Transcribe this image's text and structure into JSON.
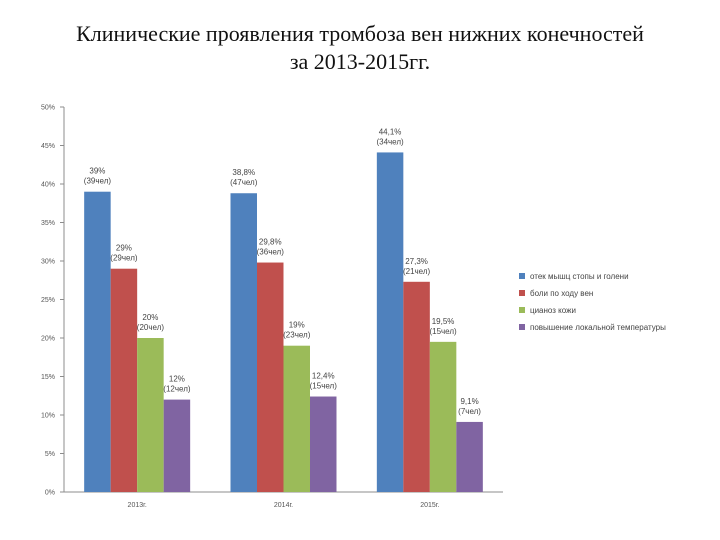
{
  "title": {
    "line1": "Клинические проявления тромбоза вен нижних конечностей",
    "line2": "за 2013-2015гг."
  },
  "chart_data": {
    "type": "bar",
    "categories": [
      "2013г.",
      "2014г.",
      "2015г."
    ],
    "ylim": [
      0,
      50
    ],
    "yticks": [
      "0%",
      "5%",
      "10%",
      "15%",
      "20%",
      "25%",
      "30%",
      "35%",
      "40%",
      "45%",
      "50%"
    ],
    "grid": false,
    "legend_position": "right",
    "series": [
      {
        "name": "отек мышц стопы и голени",
        "color": "#4f81bd",
        "values": [
          39,
          38.8,
          44.1
        ],
        "labels": [
          [
            "39%",
            "(39чел)"
          ],
          [
            "38,8%",
            "(47чел)"
          ],
          [
            "44,1%",
            "(34чел)"
          ]
        ]
      },
      {
        "name": "боли по ходу вен",
        "color": "#c0504d",
        "values": [
          29,
          29.8,
          27.3
        ],
        "labels": [
          [
            "29%",
            "(29чел)"
          ],
          [
            "29,8%",
            "(36чел)"
          ],
          [
            "27,3%",
            "(21чел)"
          ]
        ]
      },
      {
        "name": "цианоз кожи",
        "color": "#9bbb59",
        "values": [
          20,
          19,
          19.5
        ],
        "labels": [
          [
            "20%",
            "(20чел)"
          ],
          [
            "19%",
            "(23чел)"
          ],
          [
            "19,5%",
            "(15чел)"
          ]
        ]
      },
      {
        "name": "повышение локальной температуры",
        "color": "#8064a2",
        "values": [
          12,
          12.4,
          9.1
        ],
        "labels": [
          [
            "12%",
            "(12чел)"
          ],
          [
            "12,4%",
            "(15чел)"
          ],
          [
            "9,1%",
            "(7чел)"
          ]
        ]
      }
    ]
  }
}
